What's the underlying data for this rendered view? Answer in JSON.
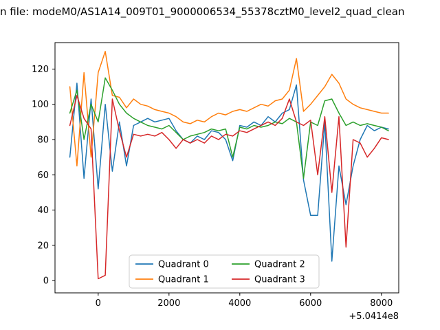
{
  "figure": {
    "title": "n file: modeM0/AS1A14_009T01_9000006534_55378cztM0_level2_quad_clean",
    "background": "#ffffff"
  },
  "chart_data": {
    "type": "line",
    "title": "n file: modeM0/AS1A14_009T01_9000006534_55378cztM0_level2_quad_clean",
    "xlabel": "",
    "ylabel": "",
    "xlim": [
      -1220,
      8490
    ],
    "ylim": [
      -7,
      135
    ],
    "xticks": [
      0,
      2000,
      4000,
      6000,
      8000
    ],
    "yticks": [
      0,
      20,
      40,
      60,
      80,
      100,
      120
    ],
    "x_axis_offset": "+5.0414e8",
    "grid": false,
    "legend_position": "lower center",
    "legend_columns": 2,
    "x": [
      -800,
      -600,
      -400,
      -200,
      0,
      200,
      400,
      600,
      800,
      1000,
      1200,
      1400,
      1600,
      1800,
      2000,
      2200,
      2400,
      2600,
      2800,
      3000,
      3200,
      3400,
      3600,
      3800,
      4000,
      4200,
      4400,
      4600,
      4800,
      5000,
      5200,
      5400,
      5600,
      5800,
      6000,
      6200,
      6400,
      6600,
      6800,
      7000,
      7200,
      7400,
      7600,
      7800,
      8000,
      8200
    ],
    "series": [
      {
        "name": "Quadrant 0",
        "color": "#1f77b4",
        "values": [
          70,
          112,
          58,
          103,
          52,
          100,
          62,
          90,
          65,
          88,
          90,
          92,
          90,
          91,
          92,
          85,
          80,
          78,
          82,
          80,
          85,
          84,
          80,
          68,
          88,
          87,
          90,
          88,
          93,
          90,
          95,
          97,
          111,
          57,
          37,
          37,
          90,
          11,
          65,
          43,
          65,
          80,
          88,
          85,
          87,
          86
        ]
      },
      {
        "name": "Quadrant 1",
        "color": "#ff7f0e",
        "values": [
          110,
          65,
          118,
          70,
          118,
          130,
          105,
          104,
          98,
          103,
          100,
          99,
          97,
          96,
          95,
          93,
          90,
          89,
          91,
          90,
          93,
          95,
          94,
          96,
          97,
          96,
          98,
          100,
          99,
          102,
          103,
          108,
          126,
          96,
          100,
          105,
          110,
          117,
          112,
          103,
          100,
          98,
          97,
          96,
          95,
          95
        ]
      },
      {
        "name": "Quadrant 2",
        "color": "#2ca02c",
        "values": [
          95,
          108,
          80,
          100,
          90,
          115,
          108,
          100,
          95,
          92,
          90,
          88,
          87,
          86,
          88,
          84,
          80,
          82,
          83,
          84,
          86,
          85,
          86,
          70,
          87,
          86,
          88,
          87,
          88,
          90,
          89,
          92,
          90,
          58,
          90,
          88,
          102,
          103,
          95,
          88,
          90,
          88,
          89,
          88,
          87,
          85
        ]
      },
      {
        "name": "Quadrant 3",
        "color": "#d62728",
        "values": [
          88,
          105,
          92,
          86,
          1,
          3,
          103,
          85,
          70,
          83,
          82,
          83,
          82,
          84,
          80,
          75,
          80,
          78,
          80,
          78,
          82,
          80,
          83,
          82,
          85,
          84,
          86,
          88,
          90,
          88,
          92,
          103,
          90,
          88,
          91,
          60,
          93,
          50,
          93,
          19,
          80,
          78,
          70,
          75,
          81,
          80
        ]
      }
    ]
  }
}
